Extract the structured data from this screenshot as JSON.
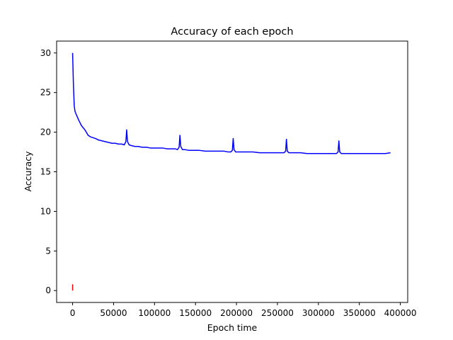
{
  "chart_data": {
    "type": "line",
    "title": "Accuracy of each epoch",
    "xlabel": "Epoch time",
    "ylabel": "Accuracy",
    "xlim": [
      -19500,
      409000
    ],
    "ylim": [
      -1.5,
      31.5
    ],
    "xticks": [
      0,
      50000,
      100000,
      150000,
      200000,
      250000,
      300000,
      350000,
      400000
    ],
    "yticks": [
      0,
      5,
      10,
      15,
      20,
      25,
      30
    ],
    "grid": false,
    "legend": "none",
    "series": [
      {
        "color": "#0000ff",
        "x": [
          0,
          1000,
          2000,
          3000,
          5000,
          8000,
          11000,
          15000,
          19000,
          22000,
          25000,
          28000,
          32000,
          36000,
          40000,
          44000,
          48000,
          52000,
          56000,
          60000,
          63000,
          65000,
          66000,
          67000,
          69000,
          72000,
          76000,
          80000,
          85000,
          90000,
          95000,
          100000,
          105000,
          110000,
          115000,
          120000,
          125000,
          128000,
          130000,
          131000,
          132000,
          134000,
          137000,
          142000,
          148000,
          155000,
          162000,
          170000,
          178000,
          185000,
          190000,
          193000,
          195000,
          196000,
          197000,
          199000,
          205000,
          212000,
          220000,
          228000,
          236000,
          244000,
          250000,
          255000,
          258000,
          260000,
          261000,
          262000,
          264000,
          270000,
          278000,
          286000,
          294000,
          302000,
          310000,
          318000,
          322000,
          324000,
          325000,
          326000,
          328000,
          335000,
          343000,
          351000,
          359000,
          367000,
          375000,
          382000,
          388000
        ],
        "y": [
          30.0,
          26.0,
          23.3,
          22.6,
          22.1,
          21.4,
          20.8,
          20.3,
          19.6,
          19.4,
          19.3,
          19.2,
          19.0,
          18.9,
          18.8,
          18.7,
          18.6,
          18.6,
          18.5,
          18.5,
          18.4,
          18.8,
          20.3,
          18.8,
          18.4,
          18.3,
          18.2,
          18.2,
          18.1,
          18.1,
          18.0,
          18.0,
          18.0,
          18.0,
          17.9,
          17.9,
          17.9,
          17.8,
          18.1,
          19.6,
          18.2,
          17.8,
          17.8,
          17.7,
          17.7,
          17.7,
          17.6,
          17.6,
          17.6,
          17.6,
          17.5,
          17.5,
          17.7,
          19.2,
          17.8,
          17.5,
          17.5,
          17.5,
          17.5,
          17.4,
          17.4,
          17.4,
          17.4,
          17.4,
          17.4,
          17.6,
          19.1,
          17.6,
          17.4,
          17.4,
          17.4,
          17.3,
          17.3,
          17.3,
          17.3,
          17.3,
          17.3,
          17.5,
          18.9,
          17.5,
          17.3,
          17.3,
          17.3,
          17.3,
          17.3,
          17.3,
          17.3,
          17.3,
          17.4
        ]
      },
      {
        "color": "#ff0000",
        "x": [
          0,
          0,
          0
        ],
        "y": [
          0.0,
          0.5,
          0.8
        ]
      }
    ]
  }
}
